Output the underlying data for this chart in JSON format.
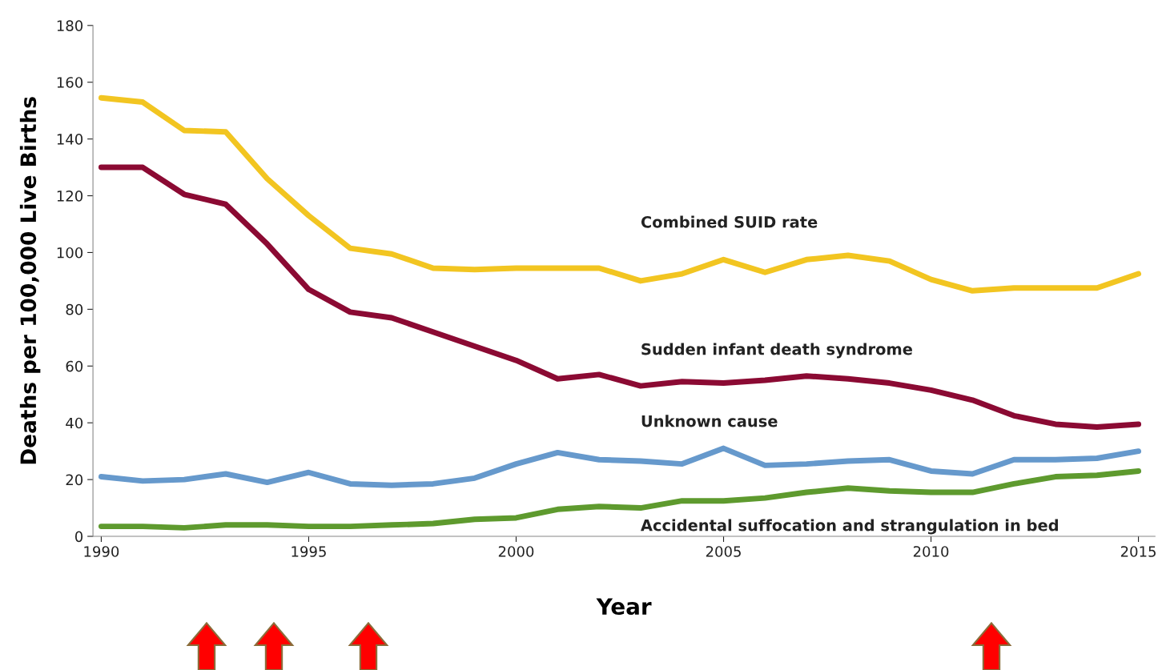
{
  "chart_data": {
    "type": "line",
    "xlabel": "Year",
    "ylabel": "Deaths per 100,000 Live Births",
    "x": [
      1990,
      1991,
      1992,
      1993,
      1994,
      1995,
      1996,
      1997,
      1998,
      1999,
      2000,
      2001,
      2002,
      2003,
      2004,
      2005,
      2006,
      2007,
      2008,
      2009,
      2010,
      2011,
      2012,
      2013,
      2014,
      2015
    ],
    "series": [
      {
        "name": "Combined SUID rate",
        "color": "#f2c521",
        "values": [
          154.5,
          153,
          143,
          142.5,
          126,
          113,
          101.5,
          99.5,
          94.5,
          94,
          94.5,
          94.5,
          94.5,
          90,
          92.5,
          97.5,
          93,
          97.5,
          99,
          97,
          90.5,
          86.5,
          87.5,
          87.5,
          87.5,
          92.5
        ]
      },
      {
        "name": "Sudden infant death syndrome",
        "color": "#8b0a33",
        "values": [
          130,
          130,
          120.5,
          117,
          103,
          87,
          79,
          77,
          72,
          67,
          62,
          55.5,
          57,
          53,
          54.5,
          54,
          55,
          56.5,
          55.5,
          54,
          51.5,
          48,
          42.5,
          39.5,
          38.5,
          39.5
        ]
      },
      {
        "name": "Unknown cause",
        "color": "#6699cc",
        "values": [
          21,
          19.5,
          20,
          22,
          19,
          22.5,
          18.5,
          18,
          18.5,
          20.5,
          25.5,
          29.5,
          27,
          26.5,
          25.5,
          31,
          25,
          25.5,
          26.5,
          27,
          23,
          22,
          27,
          27,
          27.5,
          30
        ]
      },
      {
        "name": "Accidental suffocation and strangulation in bed",
        "color": "#5e9a2e",
        "values": [
          3.5,
          3.5,
          3,
          4,
          4,
          3.5,
          3.5,
          4,
          4.5,
          6,
          6.5,
          9.5,
          10.5,
          10,
          12.5,
          12.5,
          13.5,
          15.5,
          17,
          16,
          15.5,
          15.5,
          18.5,
          21,
          21.5,
          23
        ]
      }
    ],
    "xlim": [
      1989.8,
      2015.4
    ],
    "xticks": [
      1990,
      1995,
      2000,
      2005,
      2010,
      2015
    ],
    "ylim": [
      0,
      180
    ],
    "yticks": [
      0,
      20,
      40,
      60,
      80,
      100,
      120,
      140,
      160,
      180
    ],
    "grid": false,
    "legend": false,
    "marker": "none",
    "line_style": "solid"
  }
}
